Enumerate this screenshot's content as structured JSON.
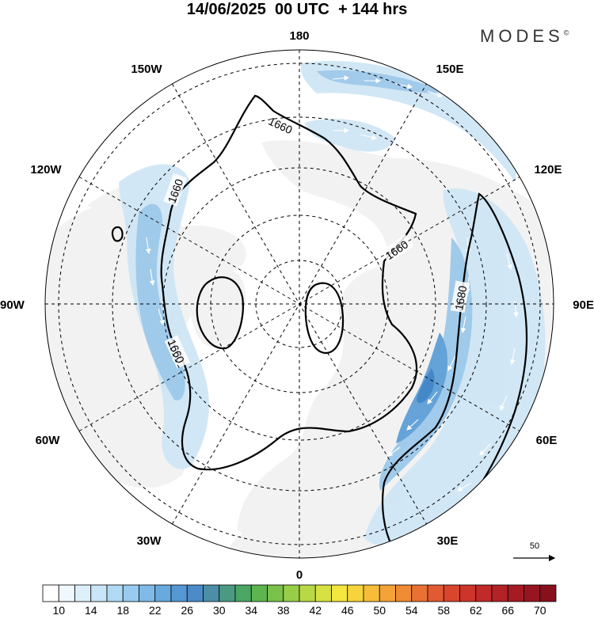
{
  "header": {
    "title": "14/06/2025  00 UTC  + 144 hrs",
    "brand": "MODES",
    "brand_mark": "©"
  },
  "map": {
    "projection": "north-polar-stereographic",
    "longitude_labels": {
      "top": "180",
      "bottom": "0",
      "left": "90W",
      "right": "90E",
      "upper_left_1": "150W",
      "upper_left_2": "120W",
      "lower_left_1": "60W",
      "lower_left_2": "30W",
      "upper_right_1": "150E",
      "upper_right_2": "120E",
      "lower_right_1": "60E",
      "lower_right_2": "30E"
    },
    "contour_labels": [
      "1660",
      "1660",
      "1660",
      "1660",
      "1680"
    ],
    "reference_vector_label": "50",
    "colors": {
      "land": "#f2f2f2",
      "ocean": "#ffffff",
      "jet_light": "#cfe6f5",
      "jet_mid": "#9cc8ea",
      "jet_strong": "#5d9fd6",
      "jet_max": "#3b83c8",
      "contour": "#000000",
      "graticule": "#000000"
    }
  },
  "colorbar": {
    "tick_labels": [
      "10",
      "14",
      "18",
      "22",
      "26",
      "30",
      "34",
      "38",
      "42",
      "46",
      "50",
      "54",
      "58",
      "62",
      "66",
      "70"
    ],
    "colors": [
      "#ffffff",
      "#eff8fc",
      "#ddf0fa",
      "#c8e6f7",
      "#b0d9f3",
      "#98cbef",
      "#80bbe8",
      "#68aadf",
      "#5597d4",
      "#4d8bc8",
      "#4b8fa6",
      "#4a9a83",
      "#4aa663",
      "#5db54e",
      "#79c14b",
      "#98cd48",
      "#b9d845",
      "#d7e141",
      "#f3e63d",
      "#f7d43b",
      "#f6bd39",
      "#f3a337",
      "#ef8a35",
      "#e97133",
      "#e25a31",
      "#d8462e",
      "#cd352b",
      "#c12a29",
      "#b32226",
      "#a51b23",
      "#961520",
      "#87101d"
    ]
  }
}
